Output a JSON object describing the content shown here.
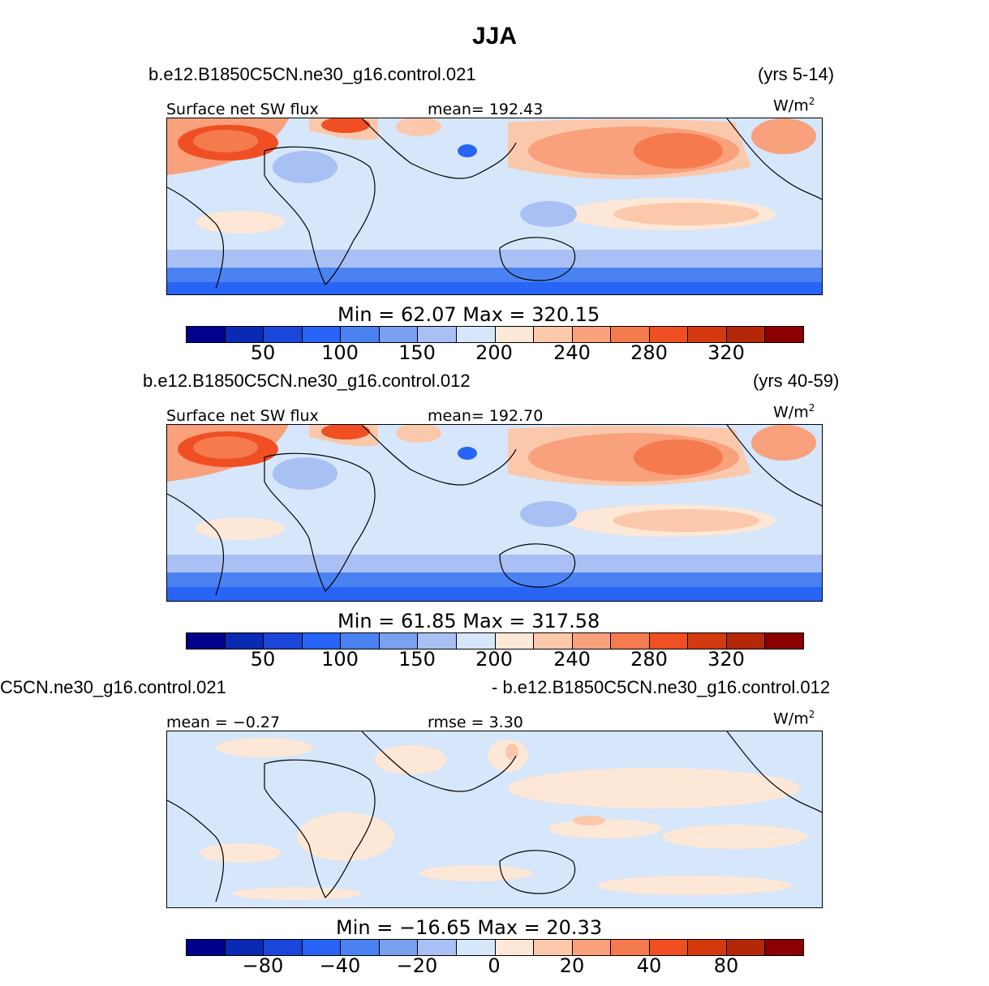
{
  "title": "JJA",
  "units": "W/m",
  "units_exp": "2",
  "colors": [
    "#00008b",
    "#0a2ab4",
    "#1a46d9",
    "#2864f5",
    "#4a82f2",
    "#7aa0f0",
    "#a8c0f4",
    "#d6e6fb",
    "#fde7d6",
    "#fbc8ab",
    "#f8a17c",
    "#f57a4e",
    "#ef4f23",
    "#d43a10",
    "#b42808",
    "#8b0000"
  ],
  "panels": [
    {
      "case_left": "b.e12.B1850C5CN.ne30_g16.control.021",
      "case_right": "(yrs 5-14)",
      "label_left": "Surface net SW flux",
      "label_mid": "mean=  192.43",
      "minmax": "Min  =    62.07  Max  =  320.15",
      "ticks": [
        "50",
        "100",
        "150",
        "200",
        "240",
        "280",
        "320"
      ]
    },
    {
      "case_left": "b.e12.B1850C5CN.ne30_g16.control.012",
      "case_right": "(yrs 40-59)",
      "label_left": "Surface net SW flux",
      "label_mid": "mean=  192.70",
      "minmax": "Min  =    61.85  Max  =  317.58",
      "ticks": [
        "50",
        "100",
        "150",
        "200",
        "240",
        "280",
        "320"
      ]
    },
    {
      "case_left": "C5CN.ne30_g16.control.021",
      "case_right": "- b.e12.B1850C5CN.ne30_g16.control.012",
      "label_left": "mean  =   −0.27",
      "label_mid": "rmse  =     3.30",
      "minmax": "Min  =  −16.65  Max  =    20.33",
      "ticks": [
        "−80",
        "−40",
        "−20",
        "0",
        "20",
        "40",
        "80"
      ]
    }
  ]
}
